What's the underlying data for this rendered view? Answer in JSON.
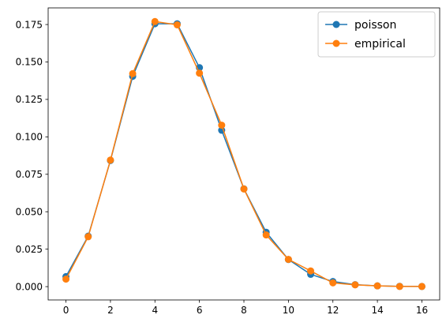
{
  "chart_data": {
    "type": "line",
    "title": "",
    "xlabel": "",
    "ylabel": "",
    "xlim": [
      -0.8,
      16.8
    ],
    "ylim": [
      -0.0089,
      0.1861
    ],
    "grid": false,
    "legend_position": "top-right",
    "x_ticks": [
      0,
      2,
      4,
      6,
      8,
      10,
      12,
      14,
      16
    ],
    "x_tick_labels": [
      "0",
      "2",
      "4",
      "6",
      "8",
      "10",
      "12",
      "14",
      "16"
    ],
    "y_ticks": [
      0.0,
      0.025,
      0.05,
      0.075,
      0.1,
      0.125,
      0.15,
      0.175
    ],
    "y_tick_labels": [
      "0.000",
      "0.025",
      "0.050",
      "0.075",
      "0.100",
      "0.125",
      "0.150",
      "0.175"
    ],
    "x": [
      0,
      1,
      2,
      3,
      4,
      5,
      6,
      7,
      8,
      9,
      10,
      11,
      12,
      13,
      14,
      15,
      16
    ],
    "series": [
      {
        "name": "poisson",
        "color": "#1f77b4",
        "values": [
          0.0067,
          0.0337,
          0.0842,
          0.1404,
          0.1755,
          0.1755,
          0.1462,
          0.1044,
          0.0653,
          0.0363,
          0.0181,
          0.0082,
          0.0034,
          0.0013,
          0.0005,
          0.0002,
          0.0001
        ]
      },
      {
        "name": "empirical",
        "color": "#ff7f0e",
        "values": [
          0.005,
          0.0333,
          0.0845,
          0.1422,
          0.177,
          0.1748,
          0.1425,
          0.1078,
          0.0652,
          0.0345,
          0.0182,
          0.0105,
          0.0025,
          0.0012,
          0.0005,
          0.0001,
          0.0001
        ]
      }
    ]
  }
}
